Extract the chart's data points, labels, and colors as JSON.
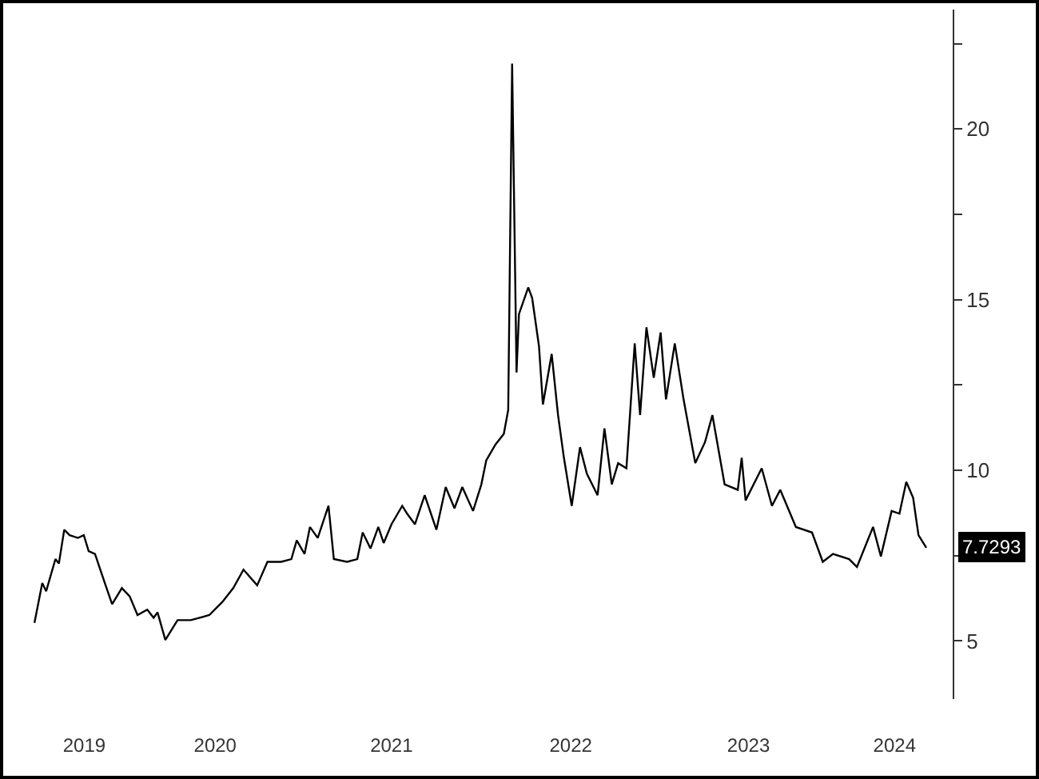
{
  "chart_data": {
    "type": "line",
    "grid": false,
    "marker": "none",
    "line_style": "solid",
    "x": [
      "2019-07-01",
      "2019-07-17",
      "2019-07-25",
      "2019-08-13",
      "2019-08-20",
      "2019-08-31",
      "2019-09-11",
      "2019-09-28",
      "2019-10-10",
      "2019-10-20",
      "2019-11-02",
      "2019-11-22",
      "2019-12-07",
      "2019-12-27",
      "2020-01-12",
      "2020-01-28",
      "2020-02-17",
      "2020-03-01",
      "2020-03-09",
      "2020-03-25",
      "2020-04-19",
      "2020-05-16",
      "2020-06-23",
      "2020-07-20",
      "2020-08-11",
      "2020-09-01",
      "2020-09-29",
      "2020-10-20",
      "2020-11-17",
      "2020-12-08",
      "2020-12-19",
      "2021-01-04",
      "2021-01-15",
      "2021-01-31",
      "2021-02-22",
      "2021-03-05",
      "2021-04-01",
      "2021-04-22",
      "2021-05-03",
      "2021-05-19",
      "2021-06-04",
      "2021-06-15",
      "2021-07-01",
      "2021-07-23",
      "2021-08-02",
      "2021-08-18",
      "2021-09-07",
      "2021-10-01",
      "2021-10-20",
      "2021-11-07",
      "2021-11-23",
      "2021-12-15",
      "2022-01-01",
      "2022-01-11",
      "2022-01-30",
      "2022-02-16",
      "2022-02-25",
      "2022-03-05",
      "2022-03-10",
      "2022-03-14",
      "2022-03-19",
      "2022-04-07",
      "2022-04-15",
      "2022-04-29",
      "2022-05-07",
      "2022-05-25",
      "2022-06-07",
      "2022-06-19",
      "2022-07-05",
      "2022-07-22",
      "2022-08-05",
      "2022-08-27",
      "2022-09-10",
      "2022-09-25",
      "2022-10-08",
      "2022-10-25",
      "2022-11-11",
      "2022-11-22",
      "2022-12-05",
      "2022-12-20",
      "2023-01-03",
      "2023-01-14",
      "2023-02-01",
      "2023-02-19",
      "2023-03-15",
      "2023-04-04",
      "2023-04-19",
      "2023-05-14",
      "2023-06-10",
      "2023-06-18",
      "2023-06-26",
      "2023-07-29",
      "2023-08-19",
      "2023-09-05",
      "2023-10-07",
      "2023-11-09",
      "2023-12-01",
      "2023-12-22",
      "2024-01-24",
      "2024-02-09",
      "2024-03-02",
      "2024-03-13",
      "2024-03-29",
      "2024-04-20",
      "2024-05-06",
      "2024-05-20",
      "2024-06-03",
      "2024-06-14",
      "2024-06-30"
    ],
    "series": [
      {
        "color": "#000000",
        "values": [
          5.53,
          6.7,
          6.46,
          7.4,
          7.27,
          8.26,
          8.1,
          8.02,
          8.1,
          7.63,
          7.55,
          6.7,
          6.08,
          6.55,
          6.31,
          5.76,
          5.92,
          5.68,
          5.84,
          5.03,
          5.61,
          5.61,
          5.76,
          6.15,
          6.55,
          7.09,
          6.63,
          7.32,
          7.32,
          7.4,
          7.95,
          7.55,
          8.34,
          8.02,
          8.96,
          7.4,
          7.32,
          7.4,
          8.18,
          7.71,
          8.34,
          7.87,
          8.42,
          8.96,
          8.73,
          8.42,
          9.27,
          8.26,
          9.51,
          8.89,
          9.51,
          8.81,
          9.59,
          10.29,
          10.76,
          11.07,
          11.77,
          21.92,
          16.92,
          12.87,
          14.58,
          15.36,
          15.05,
          13.64,
          11.93,
          13.41,
          11.62,
          10.37,
          8.96,
          10.68,
          9.9,
          9.27,
          11.23,
          9.59,
          10.21,
          10.06,
          13.72,
          11.62,
          14.19,
          12.71,
          14.04,
          12.08,
          13.72,
          12.08,
          10.21,
          10.83,
          11.62,
          9.59,
          9.43,
          10.37,
          9.12,
          10.06,
          8.96,
          9.43,
          8.34,
          8.18,
          7.32,
          7.55,
          7.4,
          7.17,
          7.95,
          8.34,
          7.48,
          8.81,
          8.73,
          9.66,
          9.2,
          8.1,
          7.7293
        ]
      }
    ],
    "xlim": [
      "2019-04-28",
      "2024-08-23"
    ],
    "xticks": [
      {
        "value": "2019-10-11",
        "label": "2019"
      },
      {
        "value": "2020-07-05",
        "label": "2020"
      },
      {
        "value": "2021-07-01",
        "label": "2021"
      },
      {
        "value": "2022-07-03",
        "label": "2022"
      },
      {
        "value": "2023-07-02",
        "label": "2023"
      },
      {
        "value": "2024-04-26",
        "label": "2024"
      }
    ],
    "ylim": [
      3.3,
      23.5
    ],
    "yticks": [
      5,
      {
        "value": 7.5,
        "label": null
      },
      10,
      {
        "value": 12.5,
        "label": null
      },
      15,
      {
        "value": 17.5,
        "label": null
      },
      20,
      {
        "value": 22.5,
        "label": null
      }
    ],
    "annotations": [
      {
        "text": "7.7293",
        "x": "2024-06-30",
        "y": 7.7293
      }
    ]
  }
}
